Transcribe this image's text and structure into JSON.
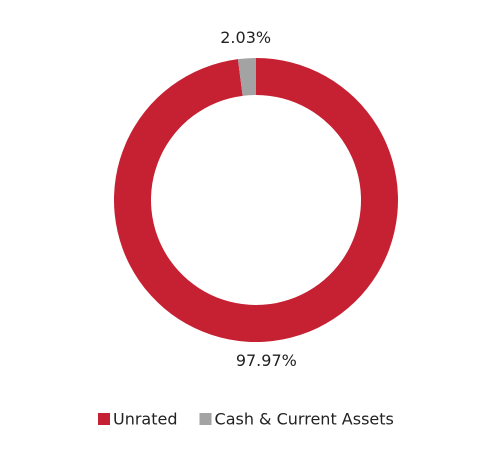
{
  "chart_data": {
    "type": "donut",
    "categories": [
      "Unrated",
      "Cash & Current Assets"
    ],
    "values": [
      97.97,
      2.03
    ],
    "value_labels": [
      "97.97%",
      "2.03%"
    ],
    "colors": [
      "#c62033",
      "#a3a3a3"
    ],
    "legend": "bottom"
  }
}
